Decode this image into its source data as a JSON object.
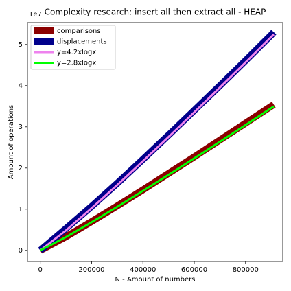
{
  "chart_data": {
    "type": "line",
    "title": "Complexity research: insert all then extract all - HEAP",
    "x_label": "N - Amount of numbers",
    "y_label": "Amount of operations",
    "y_offset_label": "1e7",
    "x": [
      0,
      100000,
      200000,
      300000,
      400000,
      500000,
      600000,
      700000,
      800000,
      900000,
      910000
    ],
    "series": [
      {
        "name": "comparisons",
        "color": "#8b0000",
        "linewidth": 10,
        "values": [
          0,
          0.33,
          0.7,
          1.08,
          1.47,
          1.87,
          2.27,
          2.68,
          3.09,
          3.5,
          3.54
        ]
      },
      {
        "name": "displacements",
        "color": "#00008b",
        "linewidth": 10,
        "values": [
          0,
          0.53,
          1.07,
          1.63,
          2.21,
          2.8,
          3.4,
          4.0,
          4.61,
          5.23,
          5.3
        ]
      },
      {
        "name": "y=4.2xlogx",
        "color": "#ee82ee",
        "linewidth": 3,
        "values": [
          0,
          0.484,
          1.025,
          1.589,
          2.167,
          2.756,
          3.353,
          3.957,
          4.567,
          5.182,
          5.244
        ]
      },
      {
        "name": "y=2.8xlogx",
        "color": "#00ff00",
        "linewidth": 3,
        "values": [
          0,
          0.322,
          0.684,
          1.059,
          1.445,
          1.837,
          2.235,
          2.638,
          3.045,
          3.455,
          3.496
        ]
      }
    ],
    "xlim": [
      -50000,
      945000
    ],
    "ylim": [
      -0.27,
      5.53
    ],
    "xticks": [
      0,
      200000,
      400000,
      600000,
      800000
    ],
    "yticks": [
      0,
      1,
      2,
      3,
      4,
      5
    ],
    "legend": "upper left"
  }
}
